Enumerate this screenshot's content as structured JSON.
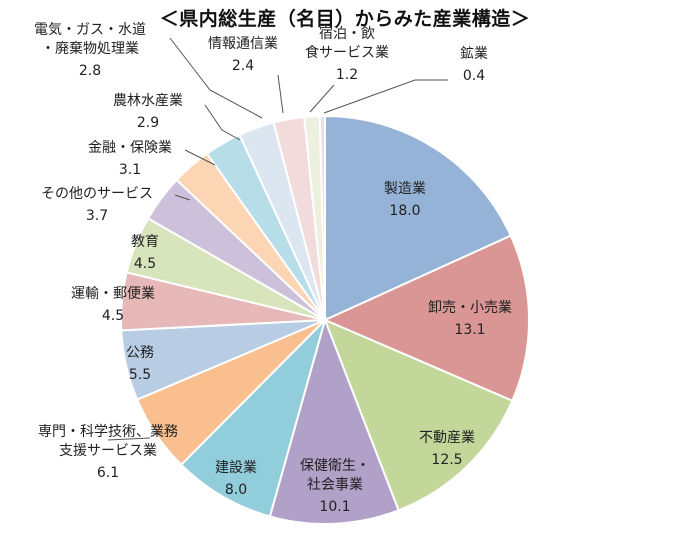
{
  "chart_data": {
    "type": "pie",
    "title": "＜県内総生産（名目）からみた産業構造＞",
    "slices": [
      {
        "label": "製造業",
        "value": 18.0,
        "color": "#95b3d7"
      },
      {
        "label": "卸売・小売業",
        "value": 13.1,
        "color": "#da9694"
      },
      {
        "label": "不動産業",
        "value": 12.5,
        "color": "#c4d79b"
      },
      {
        "label": "保健衛生・社会事業",
        "value": 10.1,
        "color": "#b1a0c7"
      },
      {
        "label": "建設業",
        "value": 8.0,
        "color": "#92cddc"
      },
      {
        "label": "専門・科学技術、業務支援サービス業",
        "value": 6.1,
        "color": "#fabf8f"
      },
      {
        "label": "公務",
        "value": 5.5,
        "color": "#b8cce4"
      },
      {
        "label": "運輸・郵便業",
        "value": 4.5,
        "color": "#e6b8b7"
      },
      {
        "label": "教育",
        "value": 4.5,
        "color": "#d8e4bc"
      },
      {
        "label": "その他のサービス",
        "value": 3.7,
        "color": "#ccc0da"
      },
      {
        "label": "金融・保険業",
        "value": 3.1,
        "color": "#fcd5b4"
      },
      {
        "label": "農林水産業",
        "value": 2.9,
        "color": "#b7dee8"
      },
      {
        "label": "電気・ガス・水道・廃棄物処理業",
        "value": 2.8,
        "color": "#dce6f1"
      },
      {
        "label": "情報通信業",
        "value": 2.4,
        "color": "#f2dcdb"
      },
      {
        "label": "宿泊・飲食サービス業",
        "value": 1.2,
        "color": "#ebf1de"
      },
      {
        "label": "鉱業",
        "value": 0.4,
        "color": "#e4dfec"
      }
    ]
  }
}
